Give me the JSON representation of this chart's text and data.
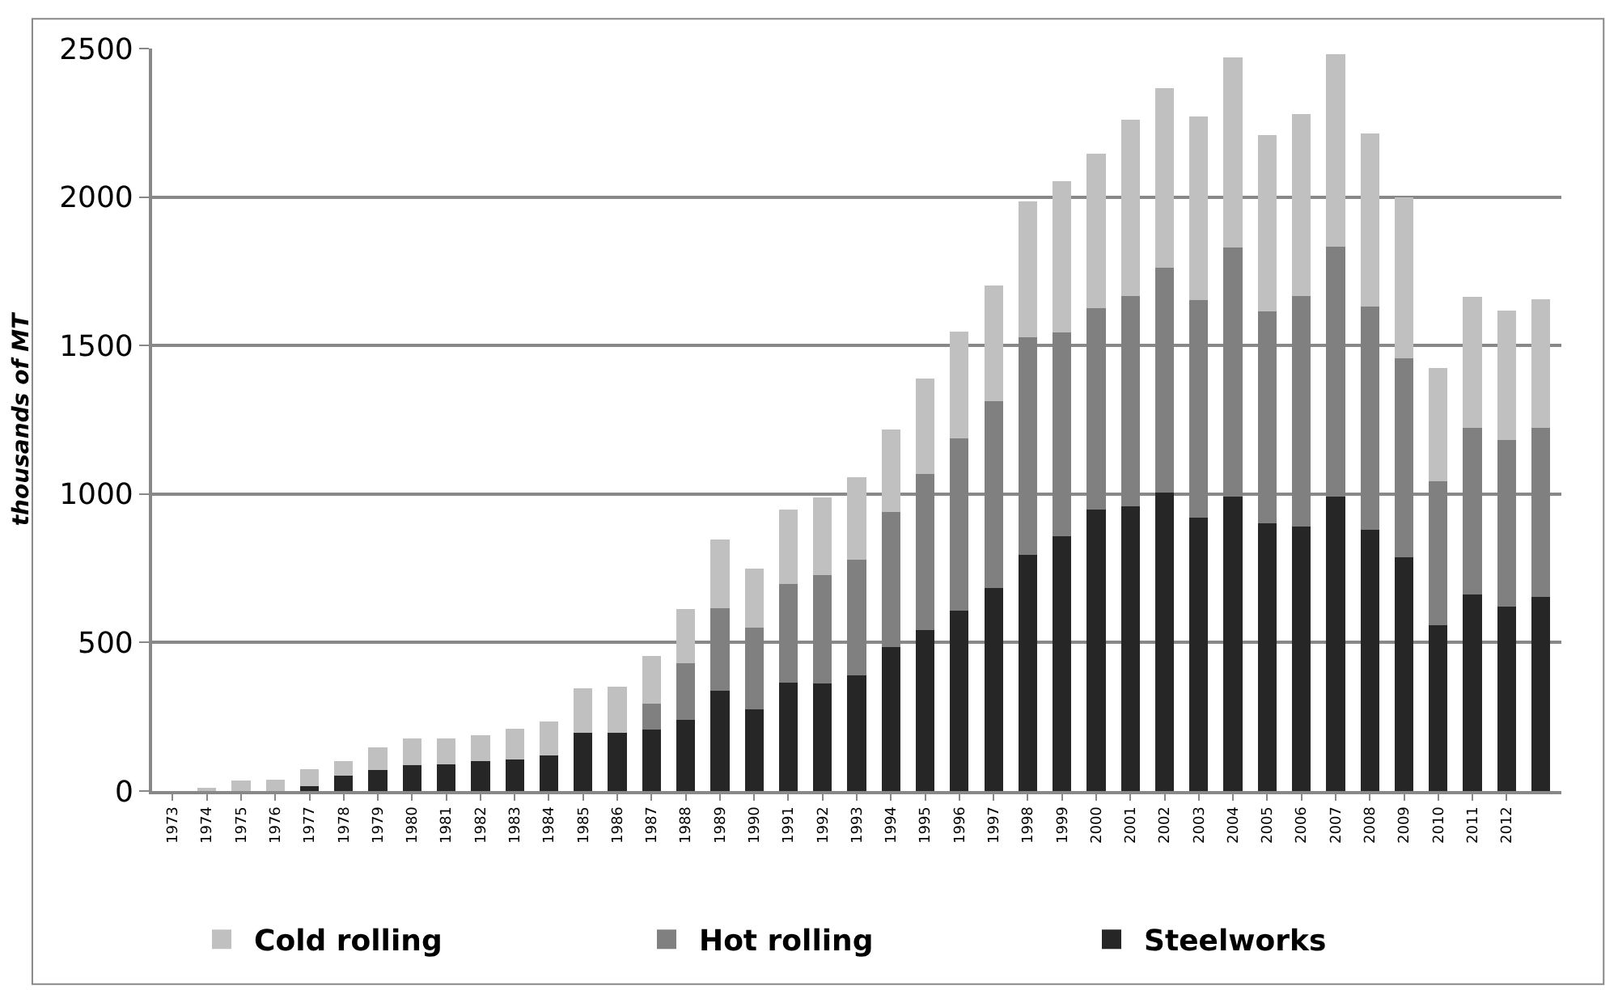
{
  "chart_data": {
    "type": "bar",
    "stacked": true,
    "ylabel": "thousands of MT",
    "categories": [
      "1973",
      "1974",
      "1975",
      "1976",
      "1977",
      "1978",
      "1979",
      "1980",
      "1981",
      "1982",
      "1983",
      "1984",
      "1985",
      "1986",
      "1987",
      "1988",
      "1989",
      "1990",
      "1991",
      "1992",
      "1993",
      "1994",
      "1995",
      "1996",
      "1997",
      "1998",
      "1999",
      "2000",
      "2001",
      "2002",
      "2003",
      "2004",
      "2005",
      "2006",
      "2007",
      "2008",
      "2009",
      "2010",
      "2011",
      "2012",
      null
    ],
    "series": [
      {
        "name": "Steelworks",
        "color": "#262626",
        "values": [
          0,
          0,
          0,
          0,
          16,
          51,
          70,
          88,
          90,
          100,
          107,
          119,
          195,
          195,
          207,
          241,
          337,
          274,
          365,
          361,
          390,
          485,
          542,
          606,
          684,
          794,
          857,
          947,
          958,
          1006,
          920,
          990,
          901,
          890,
          990,
          880,
          787,
          558,
          663,
          620,
          654
        ]
      },
      {
        "name": "Hot rolling",
        "color": "#808080",
        "values": [
          0,
          0,
          0,
          0,
          0,
          0,
          0,
          0,
          0,
          0,
          0,
          0,
          0,
          0,
          86,
          189,
          279,
          277,
          333,
          365,
          390,
          454,
          526,
          582,
          628,
          733,
          686,
          680,
          709,
          756,
          733,
          839,
          714,
          777,
          844,
          750,
          670,
          486,
          560,
          561,
          569
        ]
      },
      {
        "name": "Cold rolling",
        "color": "#c0c0c0",
        "values": [
          null,
          12,
          35,
          39,
          58,
          51,
          76,
          90,
          88,
          88,
          104,
          115,
          150,
          155,
          163,
          182,
          230,
          198,
          249,
          263,
          277,
          278,
          320,
          360,
          390,
          458,
          510,
          520,
          594,
          604,
          618,
          641,
          593,
          613,
          646,
          583,
          542,
          379,
          440,
          438,
          434
        ]
      }
    ],
    "ylim": [
      0,
      2500
    ],
    "yticks": [
      0,
      500,
      1000,
      1500,
      2000,
      2500
    ],
    "grid": "y",
    "legend": "bottom"
  }
}
